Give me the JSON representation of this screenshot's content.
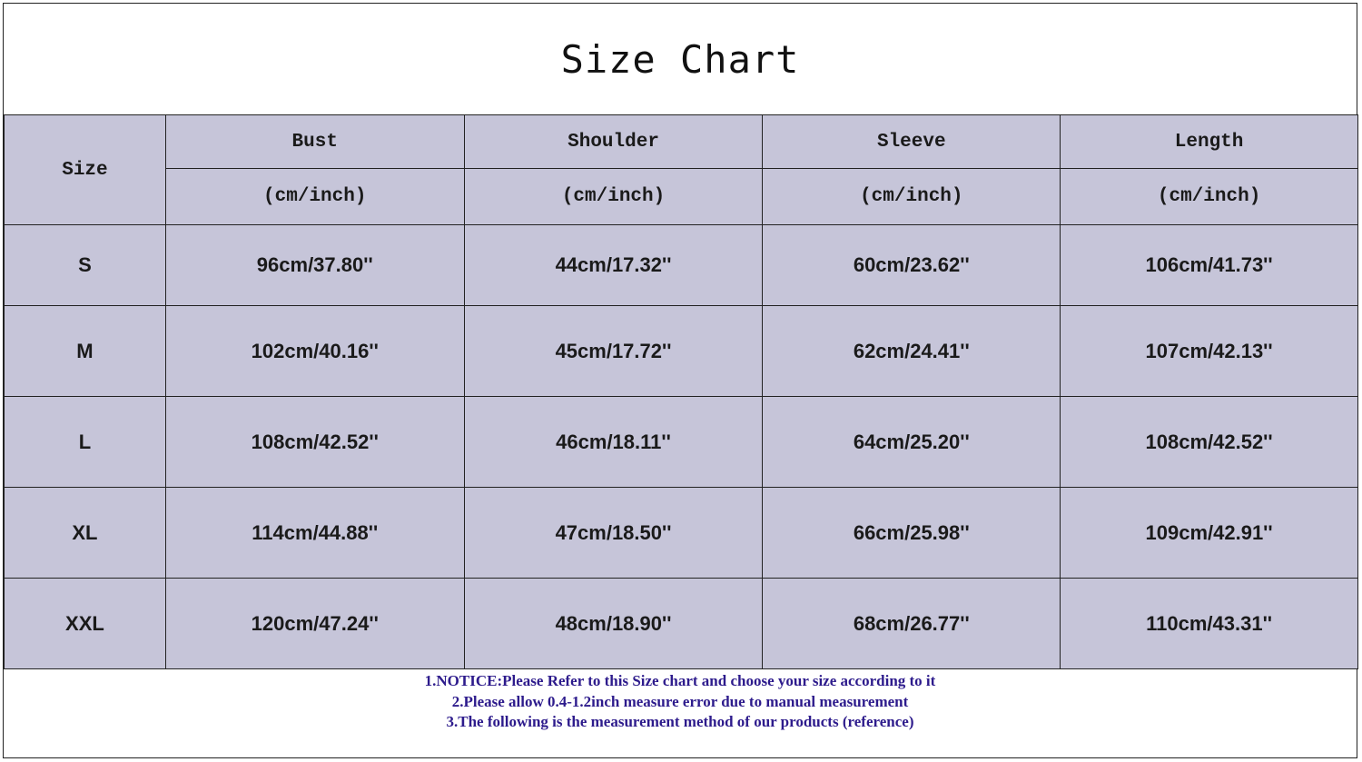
{
  "title": "Size Chart",
  "header": {
    "size": "Size",
    "columns": [
      {
        "label": "Bust",
        "unit": "(cm/inch)"
      },
      {
        "label": "Shoulder",
        "unit": "(cm/inch)"
      },
      {
        "label": "Sleeve",
        "unit": "(cm/inch)"
      },
      {
        "label": "Length",
        "unit": "(cm/inch)"
      }
    ]
  },
  "rows": [
    {
      "size": "S",
      "values": [
        "96cm/37.80''",
        "44cm/17.32''",
        "60cm/23.62''",
        "106cm/41.73''"
      ]
    },
    {
      "size": "M",
      "values": [
        "102cm/40.16''",
        "45cm/17.72''",
        "62cm/24.41''",
        "107cm/42.13''"
      ]
    },
    {
      "size": "L",
      "values": [
        "108cm/42.52''",
        "46cm/18.11''",
        "64cm/25.20''",
        "108cm/42.52''"
      ]
    },
    {
      "size": "XL",
      "values": [
        "114cm/44.88''",
        "47cm/18.50''",
        "66cm/25.98''",
        "109cm/42.91''"
      ]
    },
    {
      "size": "XXL",
      "values": [
        "120cm/47.24''",
        "48cm/18.90''",
        "68cm/26.77''",
        "110cm/43.31''"
      ]
    }
  ],
  "notes": [
    "1.NOTICE:Please Refer to this Size chart and choose your size according to it",
    "2.Please allow 0.4-1.2inch measure error due to manual measurement",
    "3.The following is the measurement method of our products (reference)"
  ],
  "colors": {
    "table_bg": "#c6c5d9",
    "notes_text": "#2d1b8c"
  }
}
